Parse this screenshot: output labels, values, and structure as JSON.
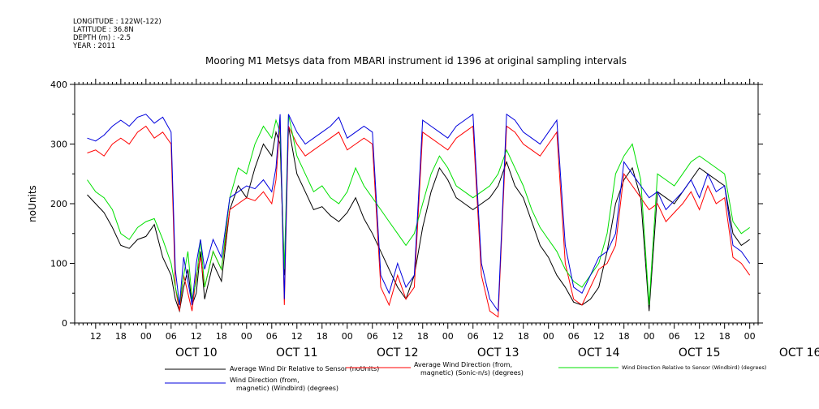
{
  "header": {
    "meta_lines": [
      "LONGITUDE : 122W(-122)",
      "LATITUDE : 36.8N",
      "DEPTH (m) : -2.5",
      "YEAR : 2011"
    ],
    "title": "Mooring M1 Metsys data from MBARI instrument id 1396 at original sampling intervals"
  },
  "chart_data": {
    "type": "line",
    "title": "Mooring M1 Metsys data from MBARI instrument id 1396 at original sampling intervals",
    "ylabel": "noUnits",
    "xlabel": "",
    "ylim": [
      0,
      400
    ],
    "yticks": [
      0,
      100,
      200,
      300,
      400
    ],
    "grid": false,
    "x_unit": "hours since Oct 10 00:00",
    "xlim": [
      -17,
      146
    ],
    "hour_ticks": [
      "00",
      "06",
      "12",
      "18"
    ],
    "day_labels": [
      "OCT 10",
      "OCT 11",
      "OCT 12",
      "OCT 13",
      "OCT 14",
      "OCT 15",
      "OCT 16"
    ],
    "series": [
      {
        "name": "Average Wind Dir Relative to Sensor (noUnits)",
        "color": "#000000",
        "x": [
          -14,
          -12,
          -10,
          -8,
          -6,
          -4,
          -2,
          0,
          2,
          4,
          6,
          7,
          8,
          9,
          10,
          11,
          12,
          13,
          14,
          16,
          18,
          20,
          22,
          24,
          26,
          28,
          30,
          31,
          32,
          33,
          34,
          36,
          38,
          40,
          42,
          44,
          46,
          48,
          50,
          52,
          54,
          56,
          58,
          60,
          62,
          64,
          66,
          68,
          70,
          72,
          74,
          76,
          78,
          80,
          82,
          84,
          86,
          88,
          90,
          92,
          94,
          96,
          98,
          100,
          102,
          104,
          106,
          108,
          110,
          112,
          114,
          116,
          118,
          120,
          122,
          124,
          126,
          128,
          130,
          132,
          134,
          136,
          138,
          140,
          142,
          144
        ],
        "y": [
          215,
          200,
          185,
          160,
          130,
          125,
          140,
          145,
          165,
          110,
          80,
          40,
          20,
          60,
          90,
          30,
          50,
          120,
          40,
          100,
          70,
          190,
          230,
          210,
          260,
          300,
          280,
          320,
          300,
          80,
          330,
          250,
          220,
          190,
          195,
          180,
          170,
          185,
          210,
          175,
          150,
          120,
          90,
          60,
          40,
          80,
          160,
          220,
          260,
          240,
          210,
          200,
          190,
          200,
          210,
          230,
          270,
          230,
          210,
          170,
          130,
          110,
          80,
          60,
          35,
          30,
          40,
          60,
          120,
          200,
          240,
          260,
          210,
          20,
          220,
          210,
          200,
          220,
          240,
          260,
          250,
          240,
          230,
          150,
          130,
          140
        ]
      },
      {
        "name": "Average Wind Direction (from, magnetic) (Sonic-n/s) (degrees)",
        "color": "#ff0000",
        "x": [
          -14,
          -12,
          -10,
          -8,
          -6,
          -4,
          -2,
          0,
          2,
          4,
          6,
          7,
          8,
          9,
          10,
          11,
          12,
          13,
          14,
          16,
          18,
          20,
          22,
          24,
          26,
          28,
          30,
          31,
          32,
          33,
          34,
          36,
          38,
          40,
          42,
          44,
          46,
          48,
          50,
          52,
          54,
          56,
          58,
          60,
          62,
          64,
          66,
          68,
          70,
          72,
          74,
          76,
          78,
          80,
          82,
          84,
          86,
          88,
          90,
          92,
          94,
          96,
          98,
          100,
          102,
          104,
          106,
          108,
          110,
          112,
          114,
          116,
          118,
          120,
          122,
          124,
          126,
          128,
          130,
          132,
          134,
          136,
          138,
          140,
          142,
          144
        ],
        "y": [
          285,
          290,
          280,
          300,
          310,
          300,
          320,
          330,
          310,
          320,
          300,
          60,
          20,
          80,
          50,
          20,
          80,
          110,
          60,
          120,
          90,
          190,
          200,
          210,
          205,
          220,
          200,
          240,
          340,
          30,
          330,
          300,
          280,
          290,
          300,
          310,
          320,
          290,
          300,
          310,
          300,
          60,
          30,
          80,
          40,
          60,
          320,
          310,
          300,
          290,
          310,
          320,
          330,
          80,
          20,
          10,
          330,
          320,
          300,
          290,
          280,
          300,
          320,
          100,
          40,
          30,
          60,
          90,
          100,
          130,
          250,
          230,
          210,
          190,
          200,
          170,
          185,
          200,
          220,
          190,
          230,
          200,
          210,
          110,
          100,
          80
        ]
      },
      {
        "name": "Wind Direction Relative to Sensor (Windbird) (degrees)",
        "color": "#00e000",
        "x": [
          -14,
          -12,
          -10,
          -8,
          -6,
          -4,
          -2,
          0,
          2,
          4,
          6,
          7,
          8,
          9,
          10,
          11,
          12,
          13,
          14,
          16,
          18,
          20,
          22,
          24,
          26,
          28,
          30,
          31,
          32,
          33,
          34,
          36,
          38,
          40,
          42,
          44,
          46,
          48,
          50,
          52,
          54,
          56,
          58,
          60,
          62,
          64,
          66,
          68,
          70,
          72,
          74,
          76,
          78,
          80,
          82,
          84,
          86,
          88,
          90,
          92,
          94,
          96,
          98,
          100,
          102,
          104,
          106,
          108,
          110,
          112,
          114,
          116,
          118,
          120,
          122,
          124,
          126,
          128,
          130,
          132,
          134,
          136,
          138,
          140,
          142,
          144
        ],
        "y": [
          240,
          220,
          210,
          190,
          150,
          140,
          160,
          170,
          175,
          140,
          100,
          60,
          30,
          80,
          120,
          40,
          70,
          140,
          60,
          120,
          90,
          210,
          260,
          250,
          300,
          330,
          310,
          340,
          320,
          90,
          350,
          280,
          250,
          220,
          230,
          210,
          200,
          220,
          260,
          230,
          210,
          190,
          170,
          150,
          130,
          150,
          200,
          250,
          280,
          260,
          230,
          220,
          210,
          220,
          230,
          250,
          290,
          260,
          230,
          190,
          160,
          140,
          120,
          90,
          70,
          60,
          80,
          100,
          150,
          250,
          280,
          300,
          240,
          30,
          250,
          240,
          230,
          250,
          270,
          280,
          270,
          260,
          250,
          170,
          150,
          160
        ]
      },
      {
        "name": "Wind Direction (from, magnetic) (Windbird) (degrees)",
        "color": "#0000dd",
        "x": [
          -14,
          -12,
          -10,
          -8,
          -6,
          -4,
          -2,
          0,
          2,
          4,
          6,
          7,
          8,
          9,
          10,
          11,
          12,
          13,
          14,
          16,
          18,
          20,
          22,
          24,
          26,
          28,
          30,
          31,
          32,
          33,
          34,
          36,
          38,
          40,
          42,
          44,
          46,
          48,
          50,
          52,
          54,
          56,
          58,
          60,
          62,
          64,
          66,
          68,
          70,
          72,
          74,
          76,
          78,
          80,
          82,
          84,
          86,
          88,
          90,
          92,
          94,
          96,
          98,
          100,
          102,
          104,
          106,
          108,
          110,
          112,
          114,
          116,
          118,
          120,
          122,
          124,
          126,
          128,
          130,
          132,
          134,
          136,
          138,
          140,
          142,
          144
        ],
        "y": [
          310,
          305,
          315,
          330,
          340,
          330,
          345,
          350,
          335,
          345,
          320,
          90,
          30,
          110,
          70,
          30,
          100,
          140,
          90,
          140,
          110,
          210,
          220,
          230,
          225,
          240,
          220,
          260,
          350,
          40,
          350,
          320,
          300,
          310,
          320,
          330,
          345,
          310,
          320,
          330,
          320,
          80,
          50,
          100,
          60,
          80,
          340,
          330,
          320,
          310,
          330,
          340,
          350,
          100,
          40,
          20,
          350,
          340,
          320,
          310,
          300,
          320,
          340,
          130,
          60,
          50,
          80,
          110,
          120,
          150,
          270,
          250,
          230,
          210,
          220,
          190,
          205,
          220,
          240,
          210,
          250,
          220,
          230,
          130,
          120,
          100
        ]
      }
    ]
  },
  "legend": [
    {
      "color": "#000000",
      "lines": [
        "Average Wind Dir Relative to Sensor (noUnits)"
      ]
    },
    {
      "color": "#ff0000",
      "lines": [
        "Average Wind Direction (from,",
        "magnetic) (Sonic-n/s) (degrees)"
      ]
    },
    {
      "color": "#00e000",
      "lines": [
        "Wind Direction Relative to Sensor (Windbird) (degrees)"
      ]
    },
    {
      "color": "#0000dd",
      "lines": [
        "Wind Direction (from,",
        "magnetic) (Windbird) (degrees)"
      ]
    }
  ]
}
